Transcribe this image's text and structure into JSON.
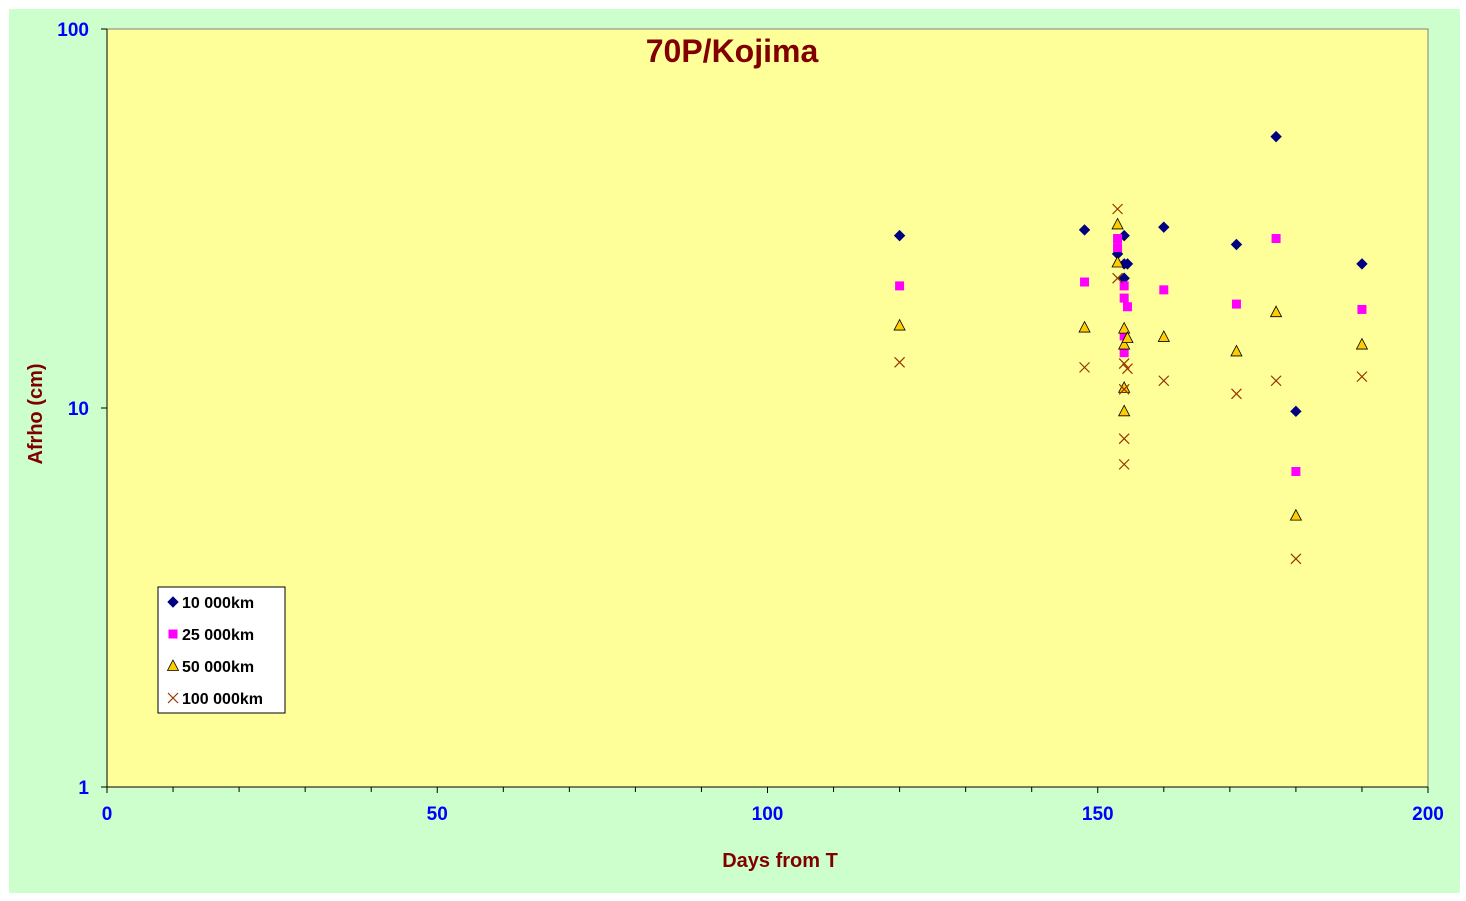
{
  "chart_data": {
    "type": "scatter",
    "title": "70P/Kojima",
    "xlabel": "Days from T",
    "ylabel": "Afrho (cm)",
    "xlim": [
      0,
      200
    ],
    "ylim": [
      1,
      100
    ],
    "y_scale": "log",
    "x_ticks": [
      0,
      50,
      100,
      150,
      200
    ],
    "y_ticks": [
      1,
      10,
      100
    ],
    "x_tick_labels": [
      "0",
      "50",
      "100",
      "150",
      "200"
    ],
    "y_tick_labels": [
      "1",
      "10",
      "100"
    ],
    "plot_background": "#ffff99",
    "figure_background": "#ccffcc",
    "legend_position": "lower-left",
    "grid": false,
    "series": [
      {
        "name": "10 000km",
        "marker": "diamond",
        "color": "#000080",
        "x": [
          120,
          148,
          153,
          154,
          154,
          154,
          154.5,
          160,
          171,
          177,
          180,
          190
        ],
        "y": [
          28.5,
          29.5,
          25.5,
          28.5,
          24,
          22,
          24,
          30,
          27,
          52,
          9.8,
          24
        ]
      },
      {
        "name": "25 000km",
        "marker": "square",
        "color": "#ff00ff",
        "x": [
          120,
          148,
          153,
          153,
          154,
          154,
          154,
          154,
          154.5,
          160,
          171,
          177,
          180,
          190
        ],
        "y": [
          21,
          21.5,
          28,
          26.5,
          21,
          19.5,
          15.5,
          14,
          18.5,
          20.5,
          18.8,
          28,
          6.8,
          18.2
        ]
      },
      {
        "name": "50 000km",
        "marker": "triangle",
        "color": "#ffcc00",
        "x": [
          120,
          148,
          153,
          153,
          154,
          154,
          154,
          154,
          154.5,
          160,
          171,
          177,
          180,
          190
        ],
        "y": [
          16.5,
          16.3,
          30.5,
          24.2,
          16.2,
          14.7,
          11.3,
          9.8,
          15.3,
          15.4,
          14.1,
          17.9,
          5.2,
          14.7
        ]
      },
      {
        "name": "100 000km",
        "marker": "x",
        "color": "#993300",
        "x": [
          120,
          148,
          153,
          153,
          154,
          154,
          154,
          154,
          154.5,
          160,
          171,
          177,
          180,
          190
        ],
        "y": [
          13.2,
          12.8,
          33.5,
          22,
          13.1,
          11.2,
          8.3,
          7.1,
          12.7,
          11.8,
          10.9,
          11.8,
          4.0,
          12.1
        ]
      }
    ]
  }
}
